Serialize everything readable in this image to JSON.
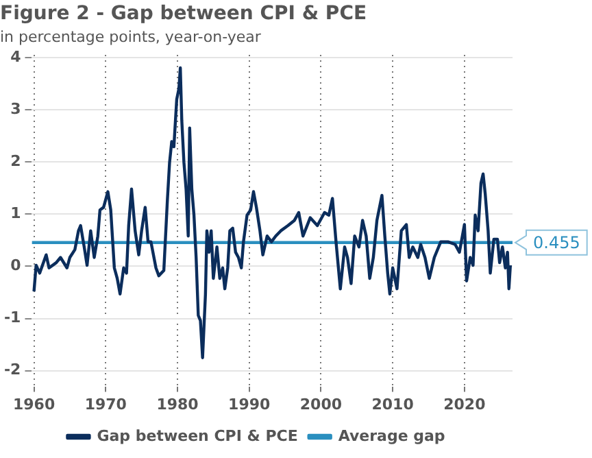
{
  "chart_data": {
    "type": "line",
    "title": "Figure 2 - Gap between CPI & PCE",
    "subtitle": "in percentage points, year-on-year",
    "xlim": [
      1959.7,
      2026.7
    ],
    "xticks": [
      1960,
      1970,
      1980,
      1990,
      2000,
      2010,
      2020
    ],
    "ylim": [
      -2.3,
      4.05
    ],
    "yticks": [
      -2,
      -1,
      0,
      1,
      2,
      3,
      4
    ],
    "grid": true,
    "legend": "bottom",
    "marker": "none",
    "line_style": "solid",
    "annotations": [
      {
        "text": "0.455",
        "x": 2026.7,
        "y": 0.455
      }
    ],
    "series": [
      {
        "name": "Gap between CPI & PCE",
        "color": "#0b2d5c",
        "x": [
          1960,
          1960.3,
          1960.8,
          1961.7,
          1962.1,
          1963.1,
          1963.7,
          1964.6,
          1965,
          1965.7,
          1966.2,
          1966.5,
          1967,
          1967.4,
          1967.9,
          1968.4,
          1968.9,
          1969.2,
          1969.7,
          1970.3,
          1970.7,
          1971.2,
          1971.6,
          1972,
          1972.5,
          1972.9,
          1973.2,
          1973.6,
          1974.1,
          1974.6,
          1975,
          1975.5,
          1975.9,
          1976.3,
          1977,
          1977.4,
          1978.1,
          1978.6,
          1978.9,
          1979.2,
          1979.5,
          1979.9,
          1980.2,
          1980.4,
          1980.6,
          1980.9,
          1981.2,
          1981.5,
          1981.7,
          1982,
          1982.3,
          1982.6,
          1982.9,
          1983.2,
          1983.5,
          1983.9,
          1984.1,
          1984.4,
          1984.7,
          1985,
          1985.5,
          1985.9,
          1986.3,
          1986.6,
          1987,
          1987.3,
          1987.7,
          1988.1,
          1988.5,
          1988.9,
          1989.2,
          1989.7,
          1990.2,
          1990.6,
          1991,
          1991.5,
          1991.9,
          1992.5,
          1993.1,
          1993.7,
          1994.4,
          1995.4,
          1996.3,
          1996.9,
          1997.5,
          1998.5,
          1999.5,
          2000.5,
          2001.1,
          2001.6,
          2002.1,
          2002.7,
          2003.3,
          2003.7,
          2004.2,
          2004.7,
          2005.3,
          2005.8,
          2006.3,
          2006.8,
          2007.3,
          2007.8,
          2008.5,
          2008.9,
          2009.3,
          2009.6,
          2010,
          2010.6,
          2011.2,
          2011.9,
          2012.3,
          2012.8,
          2013.5,
          2013.9,
          2014.5,
          2015.1,
          2015.8,
          2016.7,
          2017.7,
          2018.7,
          2019.3,
          2020,
          2020.3,
          2020.8,
          2021.2,
          2021.5,
          2021.9,
          2022.3,
          2022.6,
          2022.9,
          2023.3,
          2023.6,
          2024.1,
          2024.6,
          2024.9,
          2025.3,
          2025.7,
          2026,
          2026.2,
          2026.4
        ],
        "values": [
          -0.48,
          0.02,
          -0.13,
          0.22,
          -0.03,
          0.07,
          0.17,
          -0.03,
          0.17,
          0.32,
          0.68,
          0.78,
          0.37,
          0.02,
          0.68,
          0.17,
          0.58,
          1.08,
          1.13,
          1.43,
          1.08,
          -0.03,
          -0.23,
          -0.53,
          -0.03,
          -0.13,
          0.78,
          1.48,
          0.68,
          0.22,
          0.68,
          1.13,
          0.47,
          0.47,
          -0.03,
          -0.18,
          -0.08,
          1.28,
          1.99,
          2.39,
          2.29,
          3.2,
          3.4,
          3.8,
          2.8,
          1.99,
          1.48,
          0.58,
          2.65,
          1.48,
          0.98,
          0.17,
          -0.94,
          -1.04,
          -1.75,
          -0.54,
          0.68,
          0.27,
          0.68,
          -0.23,
          0.37,
          -0.23,
          -0.03,
          -0.43,
          -0.03,
          0.68,
          0.73,
          0.27,
          0.17,
          -0.03,
          0.47,
          0.98,
          1.08,
          1.43,
          1.13,
          0.68,
          0.22,
          0.58,
          0.47,
          0.58,
          0.68,
          0.78,
          0.88,
          1.03,
          0.58,
          0.93,
          0.78,
          1.03,
          0.98,
          1.3,
          0.47,
          -0.43,
          0.37,
          0.17,
          -0.33,
          0.58,
          0.37,
          0.88,
          0.58,
          -0.23,
          0.17,
          0.88,
          1.36,
          0.58,
          -0.13,
          -0.53,
          -0.03,
          -0.43,
          0.68,
          0.8,
          0.17,
          0.37,
          0.17,
          0.42,
          0.17,
          -0.23,
          0.17,
          0.47,
          0.47,
          0.42,
          0.27,
          0.8,
          -0.28,
          0.17,
          0.02,
          0.98,
          0.68,
          1.59,
          1.77,
          1.38,
          0.68,
          -0.13,
          0.52,
          0.52,
          0.07,
          0.37,
          -0.03,
          0.27,
          -0.43,
          0.02
        ]
      },
      {
        "name": "Average gap",
        "color": "#2a8fbf",
        "x": [
          1959.7,
          2026.7
        ],
        "values": [
          0.455,
          0.455
        ]
      }
    ]
  }
}
